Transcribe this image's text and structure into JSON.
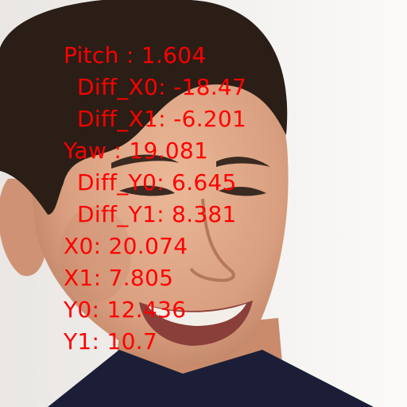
{
  "photo": {
    "subject": "smiling-face-photo",
    "colors": {
      "background": "#f4f3f1",
      "skin": "#e2ad8e",
      "skin_shadow": "#c98b6c",
      "hair": "#2a1e17",
      "shirt": "#1b1e36",
      "lips": "#b4645c",
      "teeth": "#f2efe8"
    }
  },
  "annotation": {
    "color": "#ff0000",
    "lines": [
      "Pitch : 1.604",
      "Diff_X0: -18.47",
      "Diff_X1: -6.201",
      "Yaw : 19.081",
      "Diff_Y0: 6.645",
      "Diff_Y1: 8.381",
      "X0: 20.074",
      "X1: 7.805",
      "Y0: 12.436",
      "Y1: 10.7"
    ]
  }
}
